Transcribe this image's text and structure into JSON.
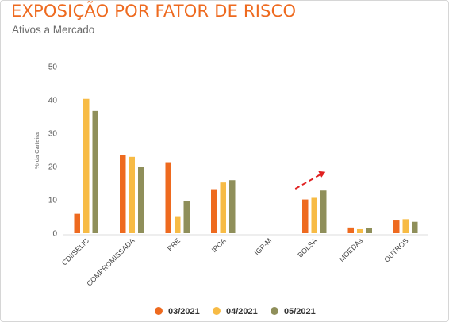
{
  "header": {
    "title": "EXPOSIÇÃO POR FATOR DE RISCO",
    "subtitle": "Ativos a Mercado",
    "title_color": "#ee6a1f"
  },
  "chart_data": {
    "type": "bar",
    "title": "EXPOSIÇÃO POR FATOR DE RISCO",
    "subtitle": "Ativos a Mercado",
    "ylabel": "% da Carteira",
    "xlabel": "",
    "ylim": [
      0,
      50
    ],
    "yticks": [
      0,
      10,
      20,
      30,
      40,
      50
    ],
    "grid": false,
    "legend": "bottom",
    "categories": [
      "CDI/SELIC",
      "COMPROMISSADA",
      "PRÉ",
      "IPCA",
      "IGP-M",
      "BOLSA",
      "MOEDAs",
      "OUTROS"
    ],
    "series": [
      {
        "name": "03/2021",
        "color": "#ee6a1f",
        "values": [
          5.8,
          23.5,
          21.3,
          13.2,
          0,
          10.1,
          1.7,
          3.8
        ]
      },
      {
        "name": "04/2021",
        "color": "#f7bb45",
        "values": [
          40.3,
          22.9,
          5.1,
          15.2,
          0,
          10.6,
          1.2,
          4.2
        ]
      },
      {
        "name": "05/2021",
        "color": "#8f8f5a",
        "values": [
          36.7,
          19.8,
          9.7,
          15.9,
          0,
          12.8,
          1.5,
          3.4
        ]
      }
    ],
    "annotations": [
      {
        "type": "arrow",
        "description": "trend-arrow",
        "color": "#e02020",
        "near_category": "BOLSA"
      }
    ]
  }
}
